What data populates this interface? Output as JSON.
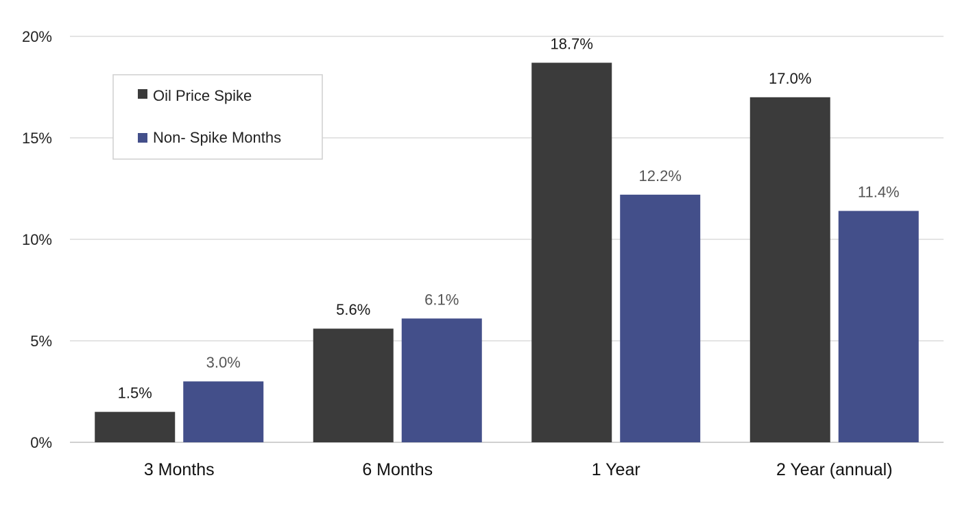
{
  "chart_data": {
    "type": "bar",
    "categories": [
      "3 Months",
      "6 Months",
      "1 Year",
      "2 Year (annual)"
    ],
    "series": [
      {
        "name": "Oil Price Spike",
        "color": "#3b3b3b",
        "values": [
          1.5,
          5.6,
          18.7,
          17.0
        ],
        "labels": [
          "1.5%",
          "5.6%",
          "18.7%",
          "17.0%"
        ]
      },
      {
        "name": "Non- Spike Months",
        "color": "#434f8a",
        "values": [
          3.0,
          6.1,
          12.2,
          11.4
        ],
        "labels": [
          "3.0%",
          "6.1%",
          "12.2%",
          "11.4%"
        ]
      }
    ],
    "ylim": [
      0,
      20
    ],
    "yticks": [
      0,
      5,
      10,
      15,
      20
    ],
    "ytick_labels": [
      "0%",
      "5%",
      "10%",
      "15%",
      "20%"
    ],
    "grid": true,
    "legend": "top-left"
  }
}
